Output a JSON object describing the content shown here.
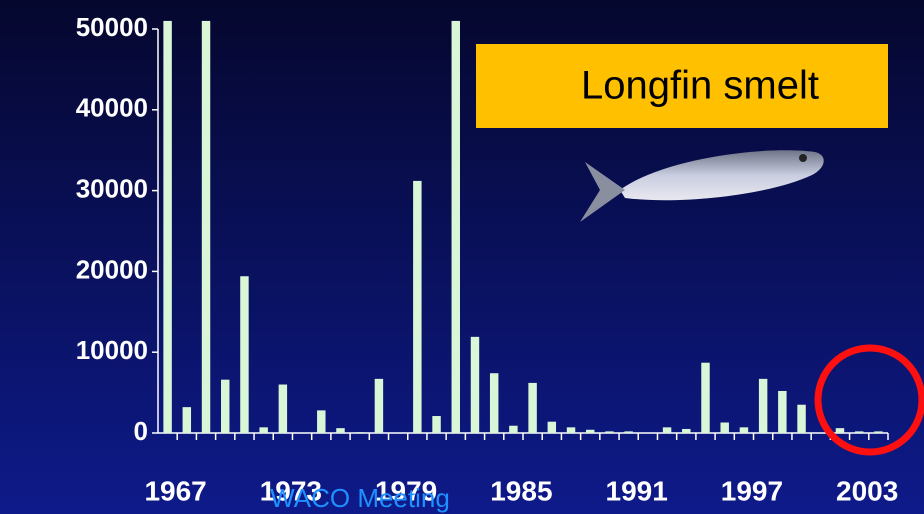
{
  "chart_data": {
    "type": "bar",
    "categories": [
      "1967",
      null,
      null,
      null,
      null,
      null,
      "1973",
      null,
      null,
      null,
      null,
      null,
      "1979",
      null,
      null,
      null,
      null,
      null,
      "1985",
      null,
      null,
      null,
      null,
      null,
      "1991",
      null,
      null,
      null,
      null,
      null,
      "1997",
      null,
      null,
      null,
      null,
      null,
      "2003",
      null
    ],
    "values": [
      51000,
      3200,
      51000,
      6600,
      19400,
      700,
      6000,
      0,
      2800,
      600,
      100,
      6700,
      0,
      31200,
      2100,
      51000,
      11900,
      7400,
      900,
      6200,
      1400,
      700,
      400,
      200,
      200,
      0,
      700,
      500,
      8700,
      1300,
      700,
      6700,
      5200,
      3500,
      0,
      600,
      200,
      200
    ],
    "color": "#d9f7d6",
    "ylim": [
      0,
      50000
    ],
    "yticks": [
      0,
      10000,
      20000,
      30000,
      40000,
      50000
    ],
    "annotation": "Longfin smelt",
    "footer": "WACO Meeting"
  }
}
